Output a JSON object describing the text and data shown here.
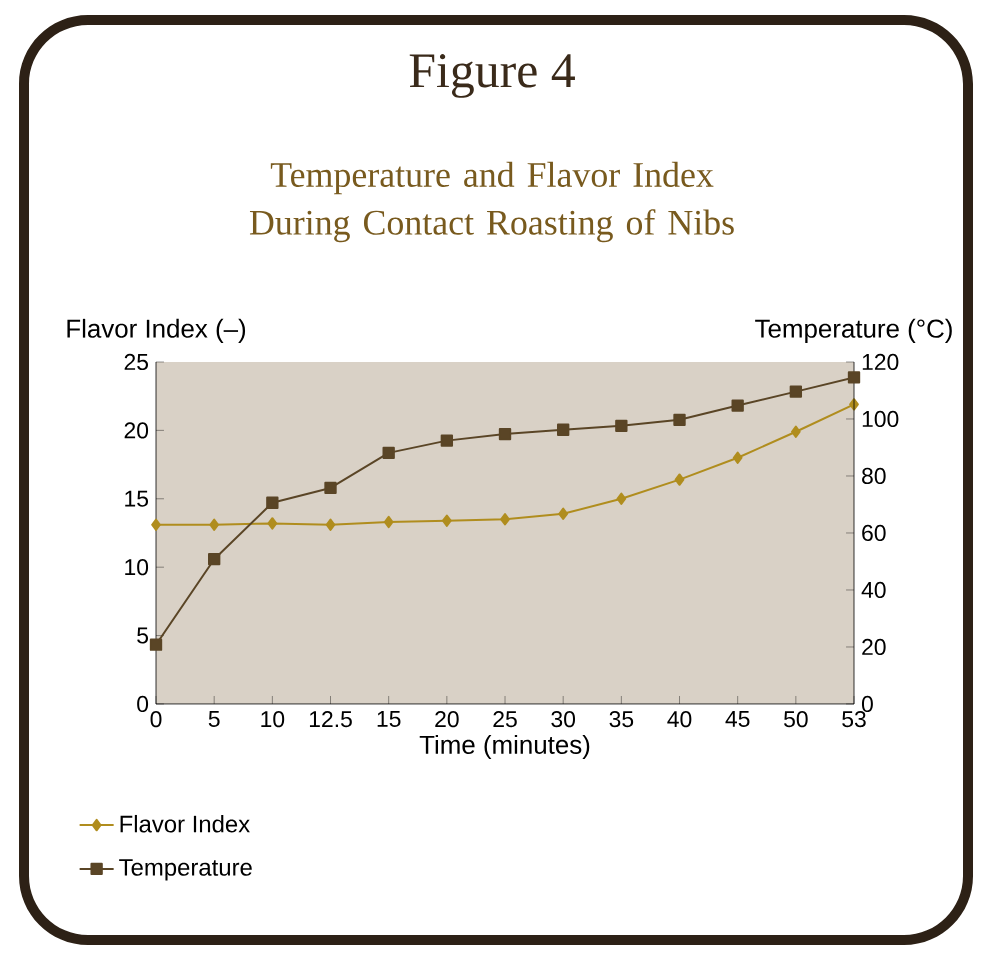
{
  "chart_data": {
    "type": "line",
    "title": "Figure 4",
    "subtitle": "Temperature and Flavor Index During Contact Roasting of Nibs",
    "xlabel": "Time (minutes)",
    "ylabel": "Flavor Index (–)",
    "y2label": "Temperature (°C)",
    "categories": [
      "0",
      "5",
      "10",
      "12.5",
      "15",
      "20",
      "25",
      "30",
      "35",
      "40",
      "45",
      "50",
      "53"
    ],
    "series": [
      {
        "name": "Flavor Index",
        "color": "#b08d1e",
        "marker": "diamond",
        "values": [
          13.1,
          13.1,
          13.2,
          13.1,
          13.3,
          13.4,
          13.5,
          13.9,
          15.0,
          16.4,
          18.0,
          19.9,
          21.9
        ]
      },
      {
        "name": "Temperature",
        "color": "#5a4526",
        "marker": "square",
        "axis": "y2",
        "values": [
          20.8,
          50.8,
          70.6,
          75.8,
          88.1,
          92.4,
          94.7,
          96.2,
          97.6,
          99.7,
          104.7,
          109.6,
          114.6
        ]
      }
    ],
    "ylim": [
      0,
      25
    ],
    "yticks": [
      0,
      5,
      10,
      15,
      20,
      25
    ],
    "y2lim": [
      0,
      120
    ],
    "y2ticks": [
      0,
      20,
      40,
      60,
      80,
      100,
      120
    ],
    "legend": "bottom"
  }
}
